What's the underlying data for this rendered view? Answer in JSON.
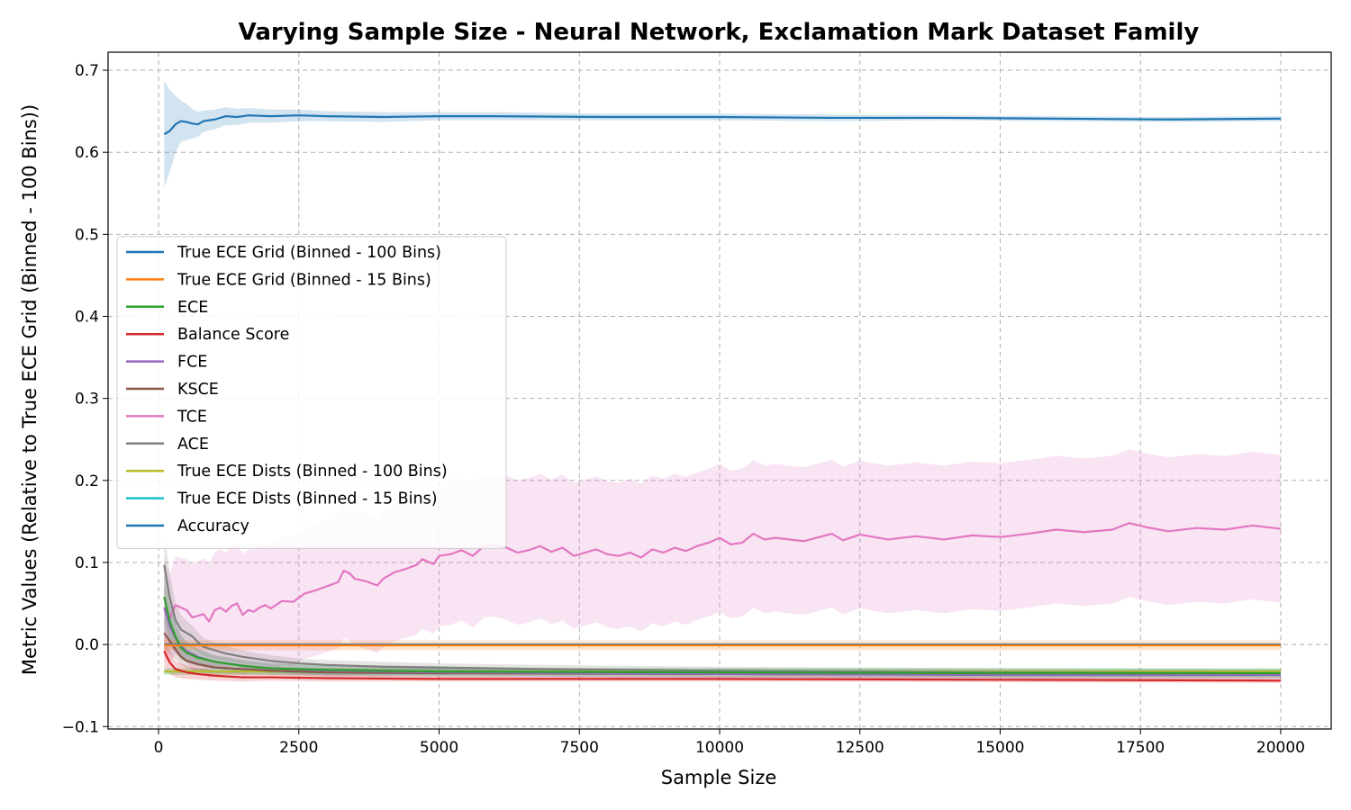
{
  "chart_data": {
    "type": "line",
    "title": "Varying Sample Size - Neural Network, Exclamation Mark Dataset Family",
    "xlabel": "Sample Size",
    "ylabel": "Metric Values (Relative to True ECE Grid (Binned - 100 Bins))",
    "xlim": [
      -900,
      20900
    ],
    "ylim": [
      -0.103,
      0.722
    ],
    "xticks": [
      0,
      2500,
      5000,
      7500,
      10000,
      12500,
      15000,
      17500,
      20000
    ],
    "xtick_labels": [
      "0",
      "2500",
      "5000",
      "7500",
      "10000",
      "12500",
      "15000",
      "17500",
      "20000"
    ],
    "yticks": [
      -0.1,
      0.0,
      0.1,
      0.2,
      0.3,
      0.4,
      0.5,
      0.6,
      0.7
    ],
    "ytick_labels": [
      "−0.1",
      "0.0",
      "0.1",
      "0.2",
      "0.3",
      "0.4",
      "0.5",
      "0.6",
      "0.7"
    ],
    "grid": true,
    "legend_position": "center-left",
    "series": [
      {
        "name": "True ECE Grid (Binned - 100 Bins)",
        "color": "#1f77b4",
        "x": [
          100,
          20000
        ],
        "values": [
          0.0,
          0.0
        ],
        "band": [
          0.0,
          0.0
        ]
      },
      {
        "name": "True ECE Grid (Binned - 15 Bins)",
        "color": "#ff7f0e",
        "x": [
          100,
          200,
          300,
          500,
          1000,
          2000,
          5000,
          10000,
          15000,
          20000
        ],
        "values": [
          -0.001,
          -0.001,
          -0.001,
          -0.001,
          -0.001,
          -0.001,
          -0.001,
          -0.001,
          -0.001,
          -0.001
        ],
        "band": [
          0.007,
          0.006,
          0.006,
          0.006,
          0.006,
          0.006,
          0.006,
          0.006,
          0.006,
          0.006
        ]
      },
      {
        "name": "ECE",
        "color": "#2ca02c",
        "x": [
          100,
          200,
          300,
          400,
          500,
          700,
          1000,
          1500,
          2000,
          3000,
          5000,
          10000,
          15000,
          20000
        ],
        "values": [
          0.058,
          0.028,
          0.01,
          -0.004,
          -0.01,
          -0.016,
          -0.021,
          -0.026,
          -0.029,
          -0.031,
          -0.033,
          -0.034,
          -0.035,
          -0.035
        ],
        "band": [
          0.03,
          0.024,
          0.018,
          0.014,
          0.012,
          0.01,
          0.008,
          0.007,
          0.006,
          0.006,
          0.005,
          0.005,
          0.005,
          0.005
        ]
      },
      {
        "name": "Balance Score",
        "color": "#d62728",
        "x": [
          100,
          200,
          300,
          500,
          700,
          1000,
          1500,
          2000,
          3000,
          5000,
          10000,
          15000,
          20000
        ],
        "values": [
          -0.008,
          -0.022,
          -0.03,
          -0.034,
          -0.036,
          -0.038,
          -0.04,
          -0.04,
          -0.041,
          -0.042,
          -0.042,
          -0.043,
          -0.044
        ],
        "band": [
          0.02,
          0.014,
          0.01,
          0.008,
          0.007,
          0.006,
          0.005,
          0.004,
          0.004,
          0.003,
          0.003,
          0.003,
          0.003
        ]
      },
      {
        "name": "FCE",
        "color": "#9467bd",
        "x": [
          100,
          200,
          300,
          400,
          500,
          700,
          1000,
          1500,
          2000,
          3000,
          5000,
          10000,
          15000,
          20000
        ],
        "values": [
          0.045,
          0.022,
          0.008,
          -0.002,
          -0.008,
          -0.015,
          -0.021,
          -0.026,
          -0.029,
          -0.032,
          -0.034,
          -0.036,
          -0.037,
          -0.037
        ],
        "band": [
          0.03,
          0.024,
          0.018,
          0.014,
          0.012,
          0.01,
          0.008,
          0.007,
          0.006,
          0.006,
          0.005,
          0.005,
          0.005,
          0.005
        ]
      },
      {
        "name": "KSCE",
        "color": "#8c564b",
        "x": [
          100,
          200,
          300,
          400,
          500,
          700,
          1000,
          1500,
          2000,
          3000,
          5000,
          10000,
          15000,
          20000
        ],
        "values": [
          0.014,
          0.004,
          -0.006,
          -0.015,
          -0.02,
          -0.024,
          -0.028,
          -0.03,
          -0.032,
          -0.034,
          -0.035,
          -0.036,
          -0.037,
          -0.037
        ],
        "band": [
          0.02,
          0.016,
          0.012,
          0.01,
          0.009,
          0.008,
          0.007,
          0.006,
          0.005,
          0.005,
          0.005,
          0.004,
          0.004,
          0.004
        ]
      },
      {
        "name": "TCE",
        "color": "#e377c2",
        "x": [
          100,
          200,
          300,
          400,
          500,
          600,
          700,
          800,
          900,
          1000,
          1100,
          1200,
          1300,
          1400,
          1500,
          1600,
          1700,
          1800,
          1900,
          2000,
          2200,
          2400,
          2600,
          2800,
          3000,
          3200,
          3300,
          3400,
          3500,
          3700,
          3900,
          4000,
          4200,
          4400,
          4600,
          4700,
          4900,
          5000,
          5200,
          5400,
          5600,
          5800,
          6000,
          6200,
          6400,
          6600,
          6800,
          7000,
          7200,
          7400,
          7600,
          7800,
          8000,
          8200,
          8400,
          8600,
          8800,
          9000,
          9200,
          9400,
          9600,
          9800,
          10000,
          10200,
          10400,
          10600,
          10800,
          11000,
          11500,
          12000,
          12200,
          12500,
          13000,
          13500,
          14000,
          14500,
          15000,
          15500,
          16000,
          16500,
          17000,
          17300,
          17600,
          18000,
          18500,
          19000,
          19500,
          20000
        ],
        "values": [
          0.045,
          0.032,
          0.048,
          0.045,
          0.042,
          0.033,
          0.035,
          0.037,
          0.028,
          0.042,
          0.045,
          0.04,
          0.047,
          0.05,
          0.036,
          0.042,
          0.04,
          0.045,
          0.048,
          0.044,
          0.053,
          0.052,
          0.062,
          0.066,
          0.071,
          0.076,
          0.09,
          0.087,
          0.08,
          0.077,
          0.072,
          0.08,
          0.088,
          0.092,
          0.097,
          0.104,
          0.098,
          0.108,
          0.11,
          0.115,
          0.108,
          0.12,
          0.121,
          0.118,
          0.112,
          0.115,
          0.12,
          0.113,
          0.118,
          0.108,
          0.112,
          0.116,
          0.11,
          0.108,
          0.112,
          0.106,
          0.116,
          0.112,
          0.118,
          0.114,
          0.12,
          0.124,
          0.13,
          0.122,
          0.124,
          0.135,
          0.128,
          0.13,
          0.126,
          0.135,
          0.127,
          0.134,
          0.128,
          0.132,
          0.128,
          0.133,
          0.131,
          0.135,
          0.14,
          0.137,
          0.14,
          0.148,
          0.143,
          0.138,
          0.142,
          0.14,
          0.145,
          0.141
        ],
        "band": [
          0.06,
          0.055,
          0.06,
          0.06,
          0.062,
          0.065,
          0.066,
          0.068,
          0.07,
          0.07,
          0.072,
          0.072,
          0.073,
          0.074,
          0.074,
          0.075,
          0.075,
          0.076,
          0.076,
          0.077,
          0.078,
          0.078,
          0.079,
          0.08,
          0.08,
          0.081,
          0.082,
          0.082,
          0.082,
          0.082,
          0.083,
          0.083,
          0.084,
          0.084,
          0.085,
          0.085,
          0.085,
          0.086,
          0.086,
          0.086,
          0.087,
          0.087,
          0.087,
          0.088,
          0.088,
          0.088,
          0.088,
          0.088,
          0.089,
          0.089,
          0.089,
          0.089,
          0.089,
          0.089,
          0.09,
          0.09,
          0.09,
          0.09,
          0.09,
          0.09,
          0.09,
          0.09,
          0.09,
          0.09,
          0.09,
          0.09,
          0.09,
          0.09,
          0.09,
          0.09,
          0.09,
          0.09,
          0.09,
          0.09,
          0.09,
          0.09,
          0.09,
          0.09,
          0.09,
          0.09,
          0.09,
          0.09,
          0.09,
          0.09,
          0.09,
          0.09,
          0.09,
          0.09
        ]
      },
      {
        "name": "ACE",
        "color": "#7f7f7f",
        "x": [
          100,
          200,
          300,
          400,
          500,
          600,
          700,
          800,
          1000,
          1200,
          1500,
          2000,
          2500,
          3000,
          4000,
          5000,
          7000,
          10000,
          15000,
          20000
        ],
        "values": [
          0.097,
          0.057,
          0.03,
          0.018,
          0.014,
          0.01,
          0.003,
          -0.003,
          -0.007,
          -0.011,
          -0.015,
          -0.02,
          -0.023,
          -0.025,
          -0.027,
          -0.028,
          -0.03,
          -0.032,
          -0.034,
          -0.035
        ],
        "band": [
          0.04,
          0.03,
          0.022,
          0.018,
          0.015,
          0.013,
          0.012,
          0.011,
          0.01,
          0.009,
          0.008,
          0.007,
          0.006,
          0.006,
          0.006,
          0.005,
          0.005,
          0.005,
          0.005,
          0.005
        ]
      },
      {
        "name": "True ECE Dists (Binned - 100 Bins)",
        "color": "#bcbd22",
        "x": [
          100,
          20000
        ],
        "values": [
          -0.033,
          -0.033
        ],
        "band": [
          0.004,
          0.004
        ]
      },
      {
        "name": "True ECE Dists (Binned - 15 Bins)",
        "color": "#17becf",
        "x": [
          100,
          20000
        ],
        "values": [
          -0.033,
          -0.033
        ],
        "band": [
          0.004,
          0.004
        ]
      },
      {
        "name": "Accuracy",
        "color": "#1f77b4",
        "x": [
          100,
          200,
          300,
          400,
          500,
          600,
          700,
          800,
          1000,
          1200,
          1400,
          1600,
          2000,
          2500,
          3000,
          4000,
          5000,
          6000,
          8000,
          10000,
          12000,
          14000,
          16000,
          18000,
          20000
        ],
        "values": [
          0.622,
          0.626,
          0.634,
          0.638,
          0.637,
          0.635,
          0.634,
          0.638,
          0.64,
          0.644,
          0.643,
          0.645,
          0.644,
          0.645,
          0.644,
          0.643,
          0.644,
          0.644,
          0.643,
          0.643,
          0.642,
          0.642,
          0.641,
          0.64,
          0.641
        ],
        "band": [
          0.065,
          0.05,
          0.035,
          0.025,
          0.022,
          0.018,
          0.015,
          0.013,
          0.012,
          0.011,
          0.01,
          0.009,
          0.008,
          0.007,
          0.006,
          0.006,
          0.005,
          0.005,
          0.004,
          0.004,
          0.004,
          0.003,
          0.003,
          0.003,
          0.003
        ]
      }
    ]
  }
}
